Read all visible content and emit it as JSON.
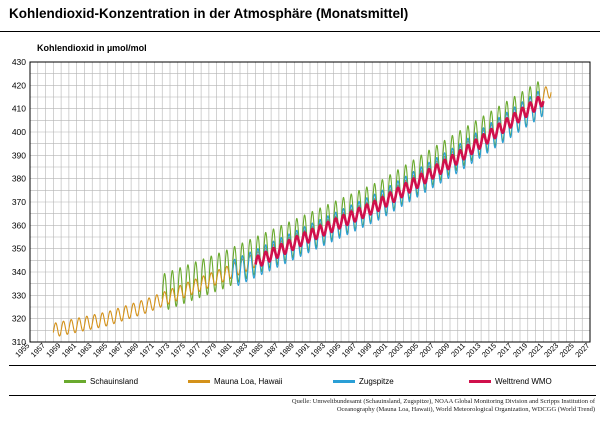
{
  "title": "Kohlendioxid-Konzentration in der Atmosphäre (Monatsmittel)",
  "source": {
    "line1": "Quelle: Umweltbundesamt (Schauinsland, Zugspitze), NOAA Global Monitoring Division and Scripps Institution of",
    "line2": "Oceanography  (Mauna Loa, Hawaii), World Meteorological Organization, WDCGG (World Trend)"
  },
  "chart_data": {
    "type": "line",
    "ylabel": "Kohlendioxid in µmol/mol",
    "xlabel": "",
    "xlim": [
      1955,
      2027
    ],
    "ylim": [
      310,
      430
    ],
    "x_ticks": [
      "1955",
      "1957",
      "1959",
      "1961",
      "1963",
      "1965",
      "1967",
      "1969",
      "1971",
      "1973",
      "1975",
      "1977",
      "1979",
      "1981",
      "1983",
      "1985",
      "1987",
      "1989",
      "1991",
      "1993",
      "1995",
      "1997",
      "1999",
      "2001",
      "2003",
      "2005",
      "2007",
      "2009",
      "2011",
      "2013",
      "2015",
      "2017",
      "2019",
      "2021",
      "2023",
      "2025",
      "2027"
    ],
    "y_ticks": [
      "310",
      "320",
      "330",
      "340",
      "350",
      "360",
      "370",
      "380",
      "390",
      "400",
      "410",
      "420",
      "430"
    ],
    "grid": true,
    "legend_position": "bottom",
    "series": [
      {
        "name": "Schauinsland",
        "color": "#6aaa2e",
        "x_start": 1972,
        "x_end": 2021,
        "amplitude": 8,
        "trend": {
          "x": [
            1972,
            1980,
            1990,
            2000,
            2010,
            2021
          ],
          "y": [
            331,
            341,
            356,
            371,
            392,
            415
          ]
        }
      },
      {
        "name": "Mauna Loa, Hawaii",
        "color": "#d4921a",
        "x_start": 1958,
        "x_end": 2022,
        "amplitude": 3,
        "trend": {
          "x": [
            1958,
            1965,
            1970,
            1980,
            1990,
            2000,
            2010,
            2022
          ],
          "y": [
            315,
            320,
            325.5,
            339,
            354.5,
            369.5,
            390,
            418
          ]
        }
      },
      {
        "name": "Zugspitze",
        "color": "#2a9fd6",
        "x_start": 1981,
        "x_end": 2021,
        "amplitude": 6,
        "trend": {
          "x": [
            1981,
            1990,
            2000,
            2010,
            2021
          ],
          "y": [
            339,
            353,
            368.5,
            388.5,
            413
          ]
        }
      },
      {
        "name": "Welttrend WMO",
        "color": "#d0104c",
        "x_start": 1984,
        "x_end": 2021,
        "amplitude": 2.5,
        "trend": {
          "x": [
            1984,
            1990,
            2000,
            2010,
            2021
          ],
          "y": [
            344,
            354,
            369,
            389,
            414
          ]
        }
      }
    ]
  }
}
